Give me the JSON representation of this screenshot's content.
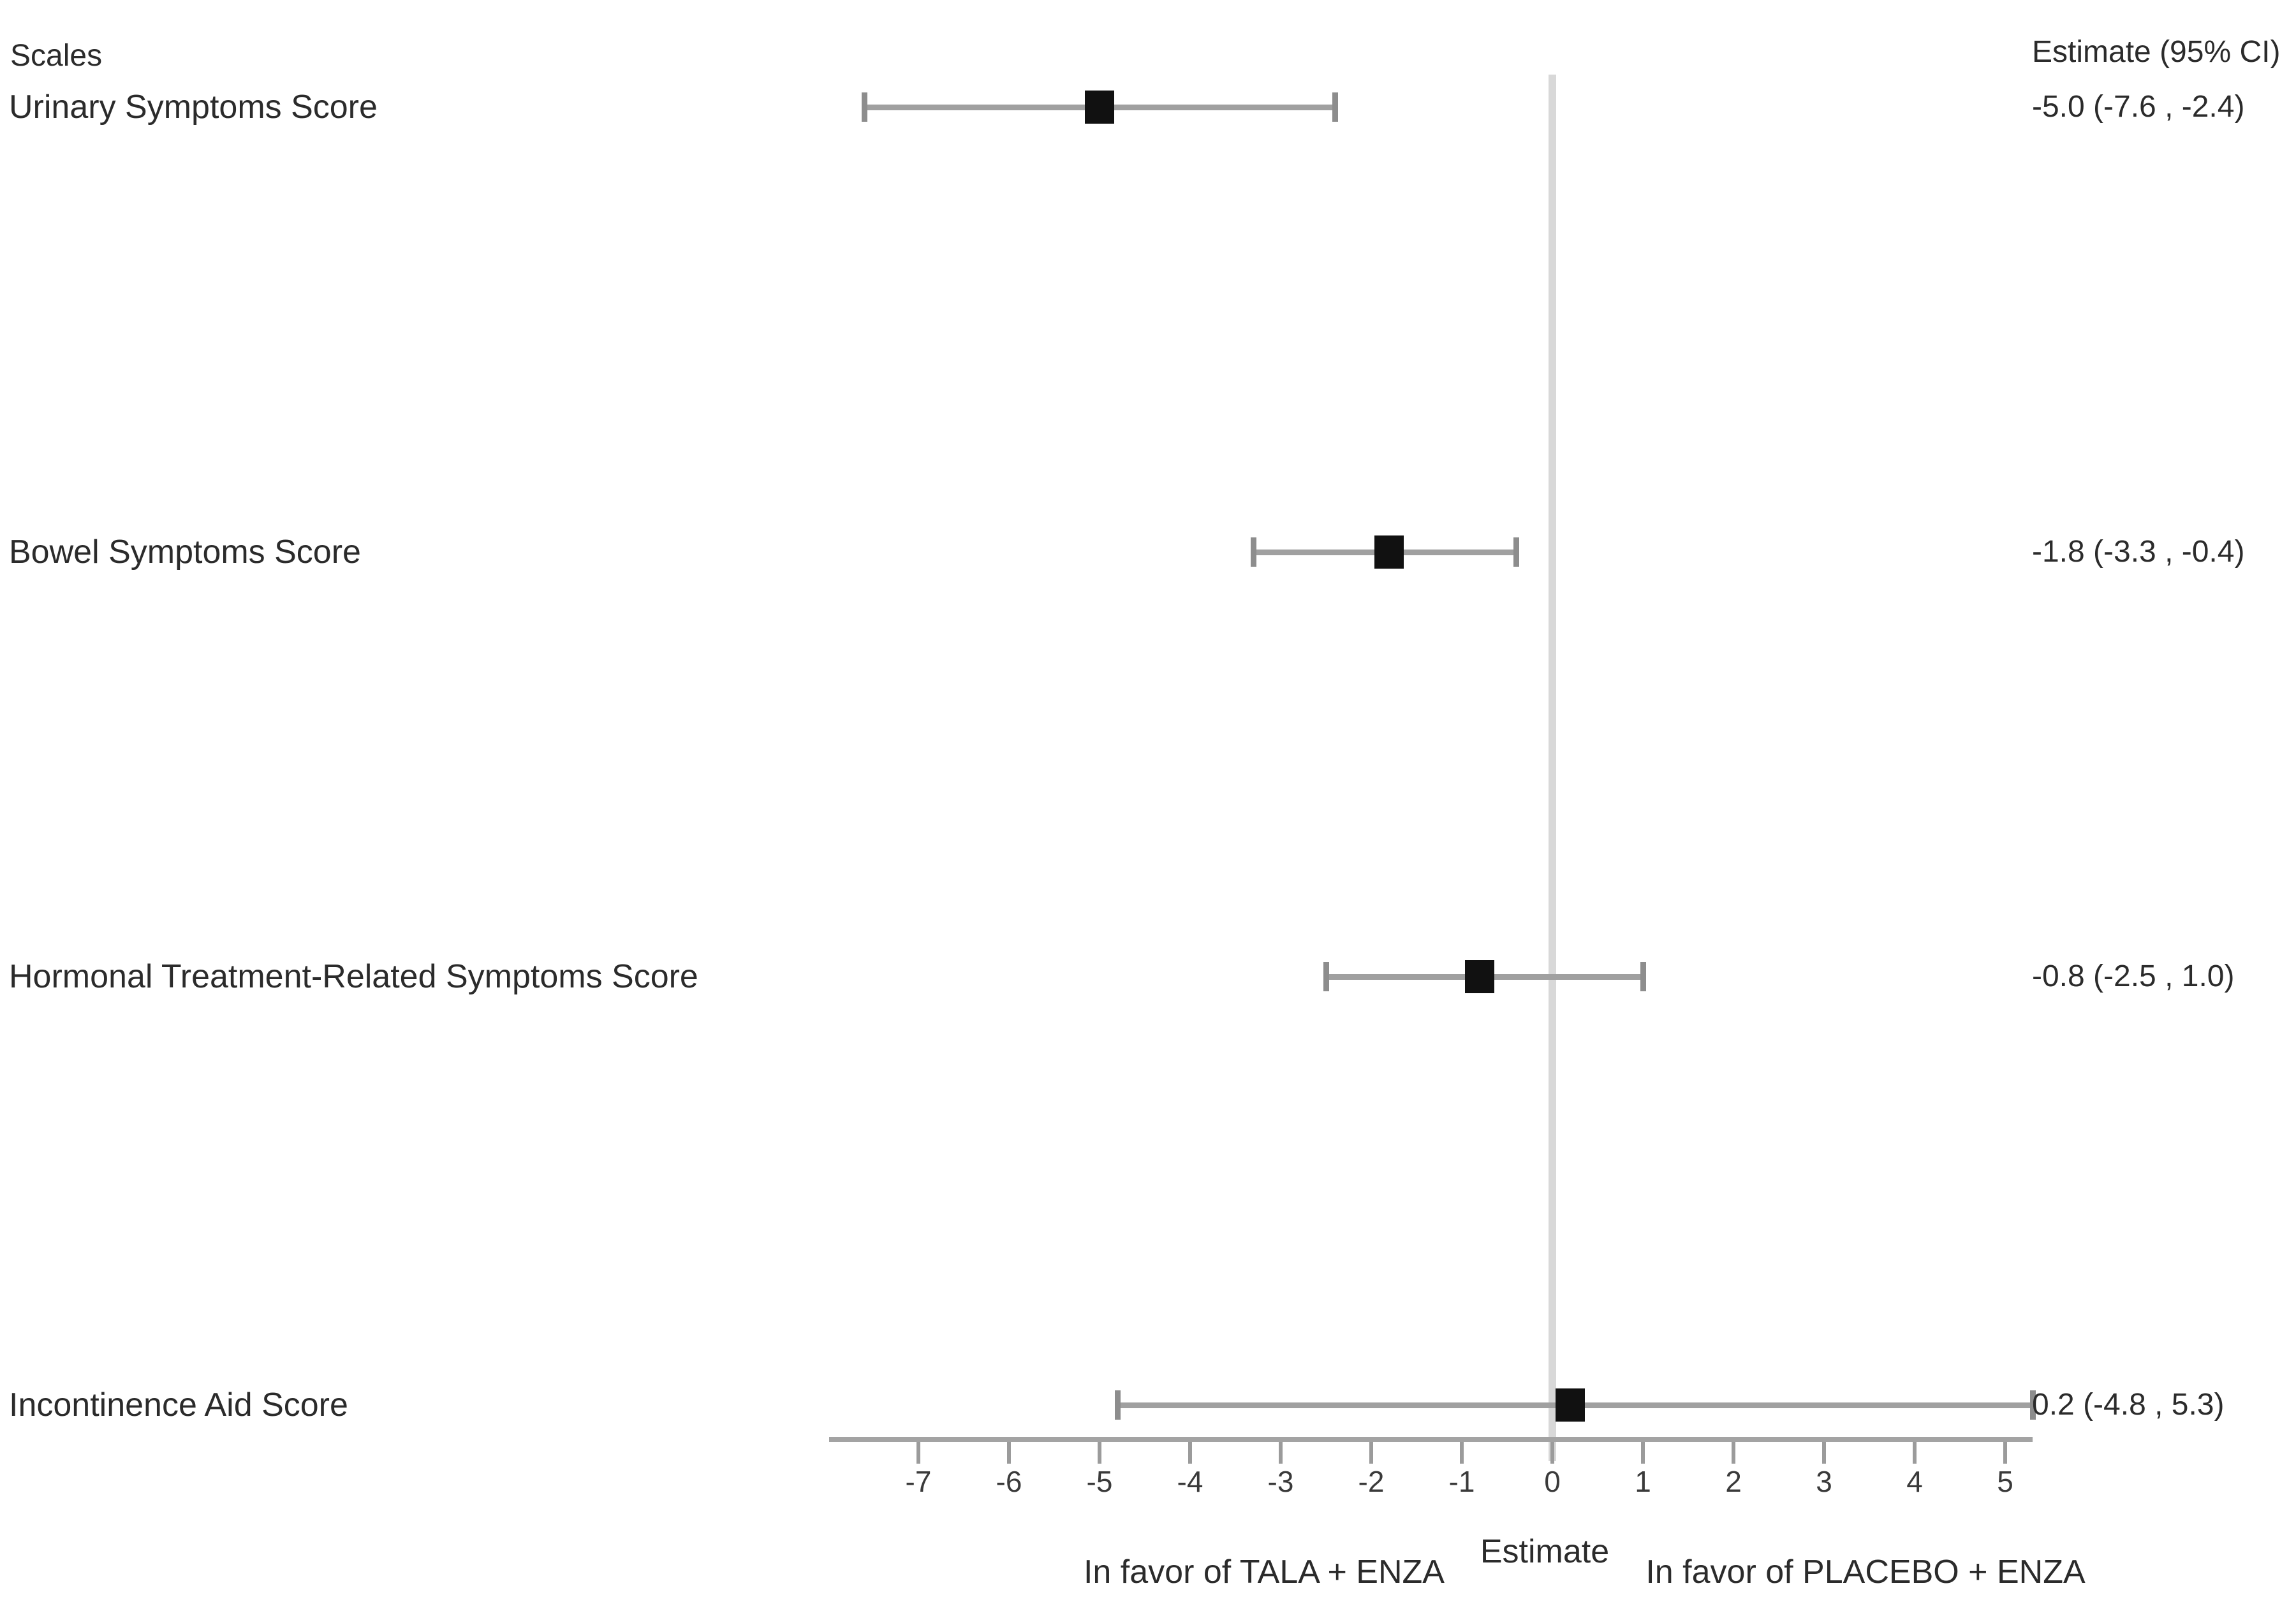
{
  "header": {
    "scales_label": "Scales",
    "estimate_ci_label": "Estimate (95% CI)"
  },
  "footer": {
    "left_label": "In favor of TALA + ENZA",
    "axis_title": "Estimate",
    "right_label": "In favor of PLACEBO + ENZA"
  },
  "colors": {
    "marker": "#111111",
    "ci_line": "#a0a0a0",
    "ci_cap": "#8d8d8d",
    "axis": "#a3a3a3",
    "tick": "#9b9b9b",
    "zero_line": "#d8d8d8",
    "text": "#2b2b2b"
  },
  "chart_data": {
    "type": "scatter",
    "subtype": "forest-plot",
    "title": "",
    "xlabel": "Estimate",
    "ylabel": "",
    "xlim": [
      -8,
      5.4
    ],
    "x_ticks": [
      -7,
      -6,
      -5,
      -4,
      -3,
      -2,
      -1,
      0,
      1,
      2,
      3,
      4,
      5
    ],
    "reference_line_x": 0,
    "grid": false,
    "legend": "none",
    "column_headers": {
      "left": "Scales",
      "right": "Estimate (95% CI)"
    },
    "series": [
      {
        "name": "Urinary Symptoms Score",
        "estimate": -5.0,
        "ci_low": -7.6,
        "ci_high": -2.4,
        "label": "-5.0 (-7.6 , -2.4)"
      },
      {
        "name": "Bowel Symptoms Score",
        "estimate": -1.8,
        "ci_low": -3.3,
        "ci_high": -0.4,
        "label": "-1.8 (-3.3 , -0.4)"
      },
      {
        "name": "Hormonal Treatment-Related Symptoms Score",
        "estimate": -0.8,
        "ci_low": -2.5,
        "ci_high": 1.0,
        "label": "-0.8 (-2.5 , 1.0)"
      },
      {
        "name": "Incontinence Aid Score",
        "estimate": 0.2,
        "ci_low": -4.8,
        "ci_high": 5.3,
        "label": "0.2 (-4.8 , 5.3)"
      }
    ],
    "annotations": {
      "left_of_zero": "In favor of TALA + ENZA",
      "axis_title": "Estimate",
      "right_of_zero": "In favor of PLACEBO + ENZA"
    }
  }
}
